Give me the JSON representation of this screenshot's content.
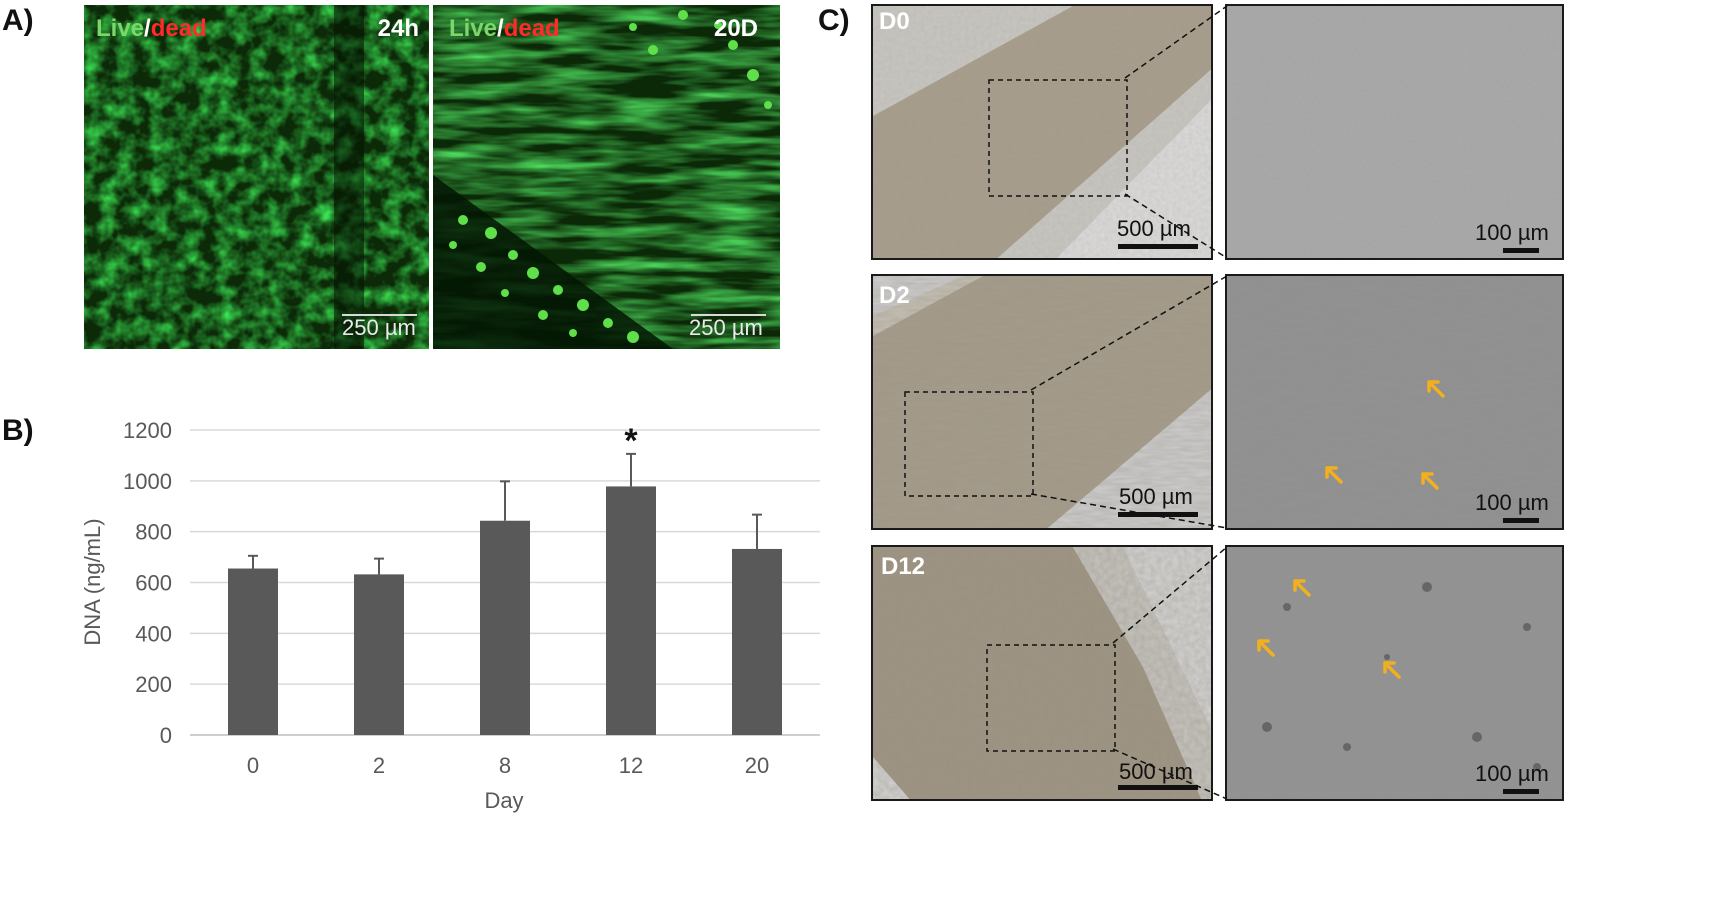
{
  "panel_a": {
    "letter": "A)",
    "images": [
      {
        "label_live": "Live",
        "label_sep": "/",
        "label_dead": "dead",
        "time": "24h",
        "scale": "250 µm"
      },
      {
        "label_live": "Live",
        "label_sep": "/",
        "label_dead": "dead",
        "time": "20D",
        "scale": "250 µm"
      }
    ],
    "colors": {
      "live": "#7dd66a",
      "dead": "#ff2a2a"
    }
  },
  "panel_b": {
    "letter": "B)",
    "significance_marker": "*"
  },
  "panel_c": {
    "letter": "C)",
    "rows": [
      {
        "label": "D0",
        "scale_low": "500 µm",
        "scale_high": "100 µm"
      },
      {
        "label": "D2",
        "scale_low": "500 µm",
        "scale_high": "100 µm"
      },
      {
        "label": "D12",
        "scale_low": "500 µm",
        "scale_high": "100 µm"
      }
    ],
    "arrow_color": "#f2b01e"
  },
  "chart_data": {
    "type": "bar",
    "categories": [
      "0",
      "2",
      "8",
      "12",
      "20"
    ],
    "values": [
      655,
      632,
      843,
      978,
      732
    ],
    "errors": [
      50,
      62,
      155,
      128,
      135
    ],
    "significant": [
      false,
      false,
      false,
      true,
      false
    ],
    "xlabel": "Day",
    "ylabel": "DNA (ng/mL)",
    "ylim": [
      0,
      1200
    ],
    "yticks": [
      0,
      200,
      400,
      600,
      800,
      1000,
      1200
    ],
    "grid": true,
    "bar_color": "#595959"
  }
}
